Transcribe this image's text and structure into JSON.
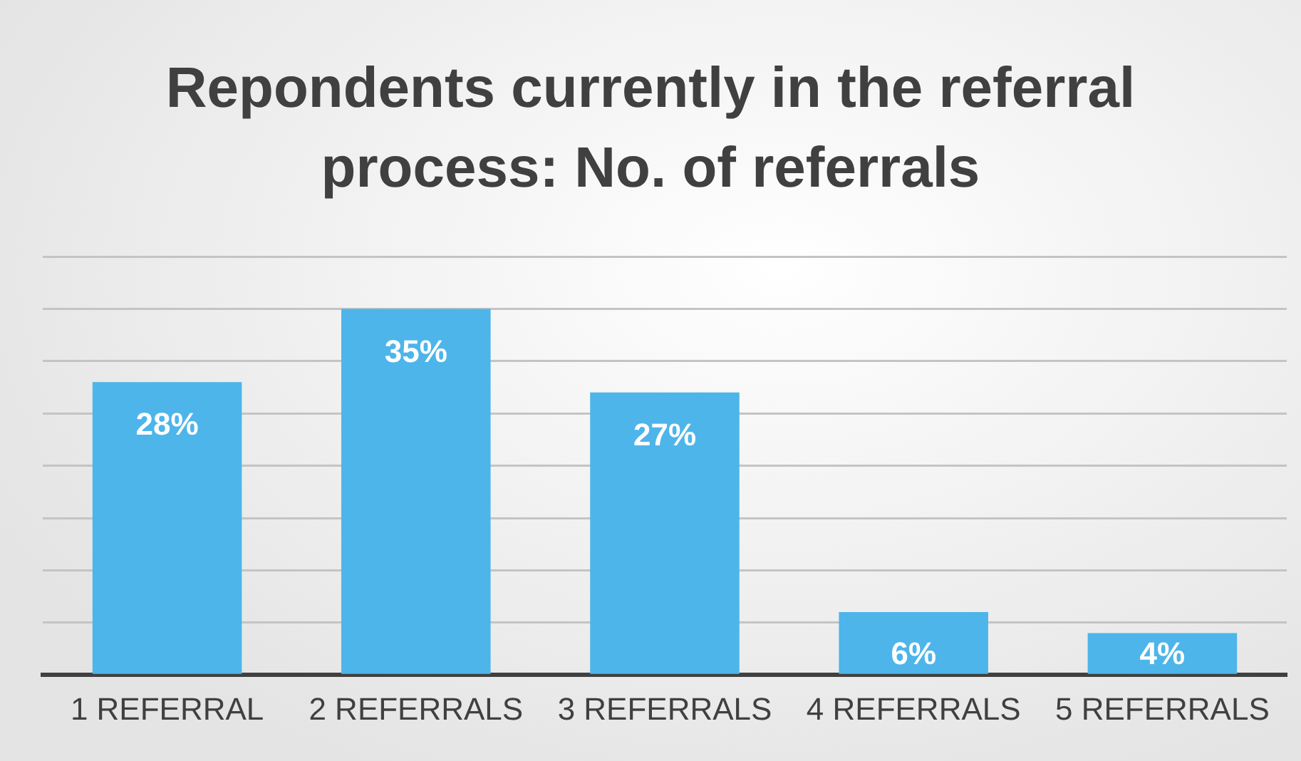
{
  "chart_data": {
    "type": "bar",
    "title": "Repondents currently in the referral process: No. of referrals",
    "categories": [
      "1 REFERRAL",
      "2 REFERRALS",
      "3 REFERRALS",
      "4 REFERRALS",
      "5 REFERRALS"
    ],
    "values": [
      28,
      35,
      27,
      6,
      4
    ],
    "value_labels": [
      "28%",
      "35%",
      "27%",
      "6%",
      "4%"
    ],
    "color": "#4db5ea",
    "tick_labels": "x",
    "grid": "y",
    "legend": false
  }
}
